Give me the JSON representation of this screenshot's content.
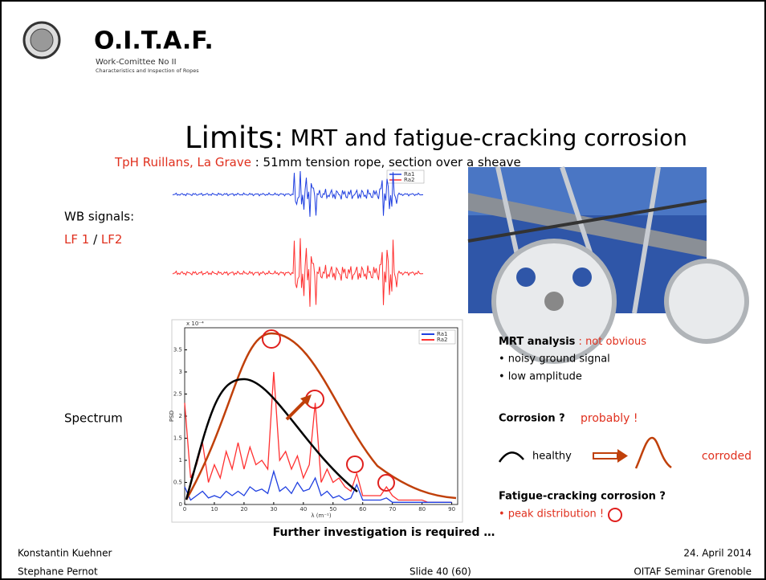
{
  "header": {
    "org": "O.I.T.A.F.",
    "committee": "Work-Comittee No II",
    "subtitle": "Characteristics and Inspection of Ropes"
  },
  "title": {
    "main": "Limits:",
    "sub": "MRT and fatigue-cracking corrosion"
  },
  "context": {
    "place": "TpH Ruillans, La Grave",
    "description": " : 51mm tension rope, section over a sheave"
  },
  "wb": {
    "label": "WB signals:",
    "lf1": "LF 1",
    "sep": " / ",
    "lf2": "LF2",
    "legend": [
      "Ra1",
      "Ra2"
    ]
  },
  "spectrum_label": "Spectrum",
  "chart_data": {
    "type": "line",
    "xlabel": "λ (m⁻¹)",
    "ylabel": "PSD",
    "yscale_label": "x 10⁻⁴",
    "x": [
      0,
      2,
      4,
      6,
      8,
      10,
      12,
      14,
      16,
      18,
      20,
      22,
      24,
      26,
      28,
      30,
      32,
      34,
      36,
      38,
      40,
      42,
      44,
      46,
      48,
      50,
      52,
      54,
      56,
      58,
      60,
      62,
      64,
      66,
      68,
      70,
      72,
      74,
      76,
      78,
      80,
      82,
      84,
      86,
      88,
      90
    ],
    "series": [
      {
        "name": "Ra1",
        "color": "#1f3fe0",
        "values": [
          0.4,
          0.1,
          0.2,
          0.3,
          0.15,
          0.2,
          0.15,
          0.3,
          0.2,
          0.3,
          0.2,
          0.4,
          0.3,
          0.35,
          0.25,
          0.75,
          0.3,
          0.4,
          0.25,
          0.5,
          0.3,
          0.35,
          0.6,
          0.2,
          0.3,
          0.15,
          0.2,
          0.1,
          0.15,
          0.45,
          0.1,
          0.1,
          0.1,
          0.1,
          0.15,
          0.05,
          0.05,
          0.05,
          0.05,
          0.05,
          0.05,
          0.05,
          0.05,
          0.05,
          0.05,
          0.05
        ]
      },
      {
        "name": "Ra2",
        "color": "#ff3030",
        "values": [
          2.3,
          0.6,
          0.9,
          1.4,
          0.5,
          0.9,
          0.6,
          1.2,
          0.8,
          1.4,
          0.8,
          1.3,
          0.9,
          1.0,
          0.8,
          3.0,
          1.0,
          1.2,
          0.8,
          1.1,
          0.6,
          0.9,
          2.3,
          0.5,
          0.8,
          0.5,
          0.6,
          0.4,
          0.3,
          0.7,
          0.2,
          0.2,
          0.2,
          0.2,
          0.4,
          0.2,
          0.1,
          0.1,
          0.1,
          0.1,
          0.1,
          0.05,
          0.05,
          0.05,
          0.05,
          0.05
        ]
      }
    ],
    "xlim": [
      0,
      92
    ],
    "xticks": [
      0,
      10,
      20,
      30,
      40,
      50,
      60,
      70,
      80,
      90
    ],
    "ylim": [
      0,
      4
    ],
    "yticks": [
      0,
      0.5,
      1,
      1.5,
      2,
      2.5,
      3,
      3.5
    ]
  },
  "analysis": {
    "mrt_title": "MRT analysis",
    "mrt_result": " : not obvious",
    "bullets": [
      "• noisy ground signal",
      "• low amplitude"
    ],
    "corrosion_title": "Corrosion ?",
    "corrosion_result": "probably !",
    "healthy": "healthy",
    "corroded": "corroded",
    "fatigue_title": "Fatigue-cracking corrosion ?",
    "fatigue_result": "• peak distribution !"
  },
  "conclusion": "Further investigation is required …",
  "footer": {
    "author1": "Konstantin Kuehner",
    "author2": "Stephane Pernot",
    "date": "24. April 2014",
    "slide": "Slide 40 (60)",
    "event": "OITAF Seminar Grenoble"
  }
}
